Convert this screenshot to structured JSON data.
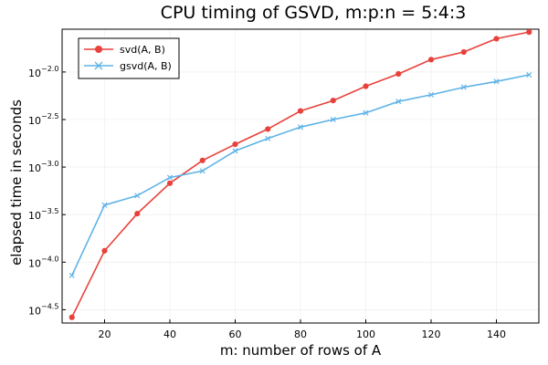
{
  "chart_data": {
    "type": "line",
    "title": "CPU timing of GSVD, m:p:n = 5:4:3",
    "xlabel": "m: number of rows of A",
    "ylabel": "elapsed time in seconds",
    "y_scale": "log10",
    "xlim": [
      7,
      153
    ],
    "ylim_log10": [
      -4.64,
      -1.55
    ],
    "x_ticks": [
      20,
      40,
      60,
      80,
      100,
      120,
      140
    ],
    "y_ticks_log10": [
      {
        "value": -4.5,
        "base": "10",
        "exp": "−4.5"
      },
      {
        "value": -4.0,
        "base": "10",
        "exp": "−4.0"
      },
      {
        "value": -3.5,
        "base": "10",
        "exp": "−3.5"
      },
      {
        "value": -3.0,
        "base": "10",
        "exp": "−3.0"
      },
      {
        "value": -2.5,
        "base": "10",
        "exp": "−2.5"
      },
      {
        "value": -2.0,
        "base": "10",
        "exp": "−2.0"
      }
    ],
    "grid": true,
    "legend_position": "top-left",
    "x": [
      10,
      20,
      30,
      40,
      50,
      60,
      70,
      80,
      90,
      100,
      110,
      120,
      130,
      140,
      150
    ],
    "series": [
      {
        "name": "svd(A, B)",
        "color": "#e8413b",
        "marker": "circle",
        "log10_values": [
          -4.58,
          -3.88,
          -3.49,
          -3.17,
          -2.93,
          -2.76,
          -2.6,
          -2.41,
          -2.3,
          -2.15,
          -2.02,
          -1.87,
          -1.79,
          -1.65,
          -1.58
        ]
      },
      {
        "name": "gsvd(A, B)",
        "color": "#5eb3e6",
        "marker": "x",
        "log10_values": [
          -4.14,
          -3.4,
          -3.3,
          -3.11,
          -3.04,
          -2.83,
          -2.7,
          -2.58,
          -2.5,
          -2.43,
          -2.31,
          -2.24,
          -2.16,
          -2.1,
          -2.03
        ]
      }
    ]
  }
}
